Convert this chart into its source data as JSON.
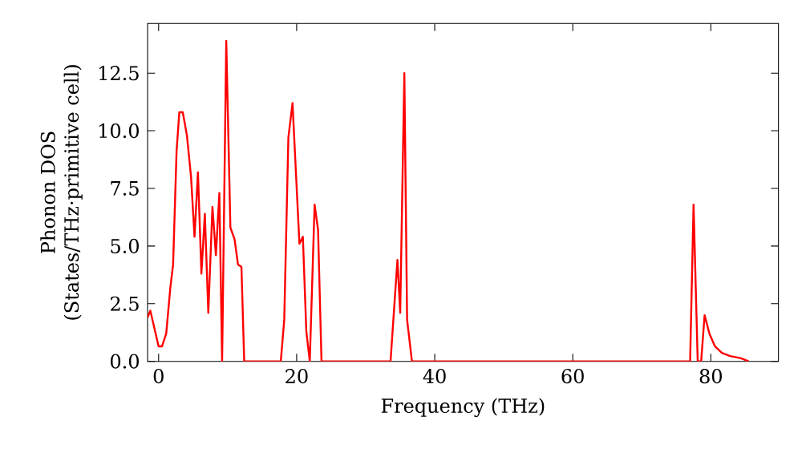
{
  "chart_data": {
    "type": "line",
    "xlabel": "Frequency (THz)",
    "ylabel": "Phonon DOS\n(States/THz·primitive cell)",
    "xlim": [
      -1.6,
      89.8
    ],
    "ylim": [
      0,
      14.65
    ],
    "xticks": [
      0,
      20,
      40,
      60,
      80
    ],
    "yticks": [
      {
        "value": 0,
        "label": "0.0"
      },
      {
        "value": 2.5,
        "label": "2.5"
      },
      {
        "value": 5,
        "label": "5.0"
      },
      {
        "value": 7.5,
        "label": "7.5"
      },
      {
        "value": 10,
        "label": "10.0"
      },
      {
        "value": 12.5,
        "label": "12.5"
      }
    ],
    "marker": "none",
    "line_style": "solid",
    "series": [
      {
        "color": "#ff0000",
        "x": [
          -1.6,
          -1.2,
          0,
          0.5,
          1.1,
          1.7,
          2.1,
          2.6,
          3.0,
          3.5,
          4.1,
          4.7,
          5.2,
          5.7,
          6.2,
          6.7,
          7.2,
          7.8,
          8.3,
          8.8,
          9.2,
          9.8,
          10.4,
          11.0,
          11.5,
          12.0,
          12.4,
          17.7,
          18.2,
          18.8,
          19.4,
          20.4,
          20.9,
          21.4,
          21.9,
          22.6,
          23.1,
          23.6,
          33.6,
          34.6,
          35.0,
          35.6,
          36.0,
          36.7,
          77.0,
          77.5,
          78.1,
          78.6,
          79.1,
          79.8,
          80.6,
          81.6,
          82.8,
          84.3,
          85.5
        ],
        "values": [
          1.9,
          2.2,
          0.65,
          0.65,
          1.2,
          3.2,
          4.2,
          9.1,
          10.8,
          10.8,
          9.8,
          8.0,
          5.4,
          8.2,
          3.8,
          6.4,
          2.1,
          6.7,
          4.6,
          7.3,
          0,
          13.9,
          5.8,
          5.3,
          4.2,
          4.1,
          0,
          0,
          1.8,
          9.7,
          11.2,
          5.1,
          5.4,
          1.3,
          0,
          6.8,
          5.7,
          0,
          0,
          4.4,
          2.1,
          12.5,
          1.8,
          0,
          0,
          6.8,
          0,
          0,
          2.0,
          1.2,
          0.65,
          0.37,
          0.23,
          0.14,
          0
        ]
      }
    ]
  }
}
